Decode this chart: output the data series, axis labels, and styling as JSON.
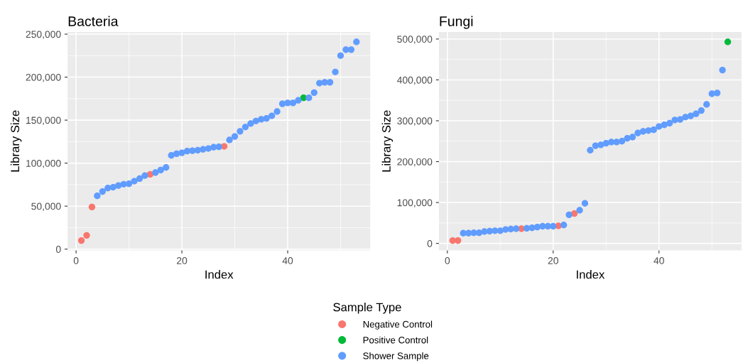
{
  "chart_data": [
    {
      "type": "scatter",
      "title": "Bacteria",
      "xlabel": "Index",
      "ylabel": "Library Size",
      "legend_title": "Sample Type",
      "legend": "bottom",
      "grid": true,
      "marker": "circle",
      "xlim": [
        -1.6,
        55.6
      ],
      "xticks": [
        0,
        20,
        40
      ],
      "ylim": [
        -1550,
        252550
      ],
      "yticks": [
        0,
        {
          "value": 50000,
          "label": "50,000"
        },
        {
          "value": 100000,
          "label": "100,000"
        },
        {
          "value": 150000,
          "label": "150,000"
        },
        {
          "value": 200000,
          "label": "200,000"
        },
        {
          "value": 250000,
          "label": "250,000"
        }
      ],
      "series": [
        {
          "name": "Negative Control",
          "color": "#f8766d",
          "x": [
            1,
            2,
            3,
            14,
            28
          ],
          "values": [
            10000,
            16000,
            49000,
            87000,
            119500
          ]
        },
        {
          "name": "Positive Control",
          "color": "#00ba38",
          "x": [
            43
          ],
          "values": [
            176000
          ]
        },
        {
          "name": "Shower Sample",
          "color": "#619cff",
          "x": [
            4,
            5,
            6,
            7,
            8,
            9,
            10,
            11,
            12,
            13,
            15,
            16,
            17,
            18,
            19,
            20,
            21,
            22,
            23,
            24,
            25,
            26,
            27,
            29,
            30,
            31,
            32,
            33,
            34,
            35,
            36,
            37,
            38,
            39,
            40,
            41,
            42,
            44,
            45,
            46,
            47,
            48,
            49,
            50,
            51,
            52,
            53
          ],
          "values": [
            62000,
            67000,
            71000,
            72000,
            74000,
            75500,
            76000,
            79000,
            82000,
            85500,
            89000,
            92000,
            95000,
            109000,
            111000,
            112000,
            114000,
            114500,
            115000,
            116000,
            117000,
            118500,
            119000,
            127000,
            131000,
            137000,
            142000,
            146000,
            149000,
            151000,
            152000,
            155000,
            160000,
            169000,
            170000,
            170000,
            173000,
            176000,
            182000,
            193000,
            194000,
            194000,
            206000,
            225000,
            232000,
            232000,
            241000
          ]
        }
      ]
    },
    {
      "type": "scatter",
      "title": "Fungi",
      "xlabel": "Index",
      "ylabel": "Library Size",
      "grid": true,
      "marker": "circle",
      "xlim": [
        -1.6,
        55.6
      ],
      "xticks": [
        0,
        20,
        40
      ],
      "ylim": [
        -17300,
        517300
      ],
      "yticks": [
        0,
        {
          "value": 100000,
          "label": "100,000"
        },
        {
          "value": 200000,
          "label": "200,000"
        },
        {
          "value": 300000,
          "label": "300,000"
        },
        {
          "value": 400000,
          "label": "400,000"
        },
        {
          "value": 500000,
          "label": "500,000"
        }
      ],
      "series": [
        {
          "name": "Negative Control",
          "color": "#f8766d",
          "x": [
            1,
            2,
            14,
            21,
            24
          ],
          "values": [
            7000,
            7000,
            36000,
            43000,
            73000
          ]
        },
        {
          "name": "Positive Control",
          "color": "#00ba38",
          "x": [
            53
          ],
          "values": [
            493000
          ]
        },
        {
          "name": "Shower Sample",
          "color": "#619cff",
          "x": [
            3,
            4,
            5,
            6,
            7,
            8,
            9,
            10,
            11,
            12,
            13,
            15,
            16,
            17,
            18,
            19,
            20,
            22,
            23,
            25,
            26,
            27,
            28,
            29,
            30,
            31,
            32,
            33,
            34,
            35,
            36,
            37,
            38,
            39,
            40,
            41,
            42,
            43,
            44,
            45,
            46,
            47,
            48,
            49,
            50,
            51,
            52
          ],
          "values": [
            25000,
            25000,
            26000,
            26000,
            29000,
            30000,
            31000,
            31000,
            34000,
            35000,
            36000,
            37000,
            38000,
            40000,
            42000,
            42000,
            42000,
            45000,
            70000,
            81000,
            98000,
            228000,
            239000,
            241000,
            245000,
            248000,
            248000,
            250000,
            257000,
            260000,
            270000,
            274000,
            276000,
            278000,
            286000,
            290000,
            294000,
            302000,
            303000,
            309000,
            312000,
            317000,
            325000,
            340000,
            366000,
            368000,
            424000
          ]
        }
      ]
    }
  ]
}
